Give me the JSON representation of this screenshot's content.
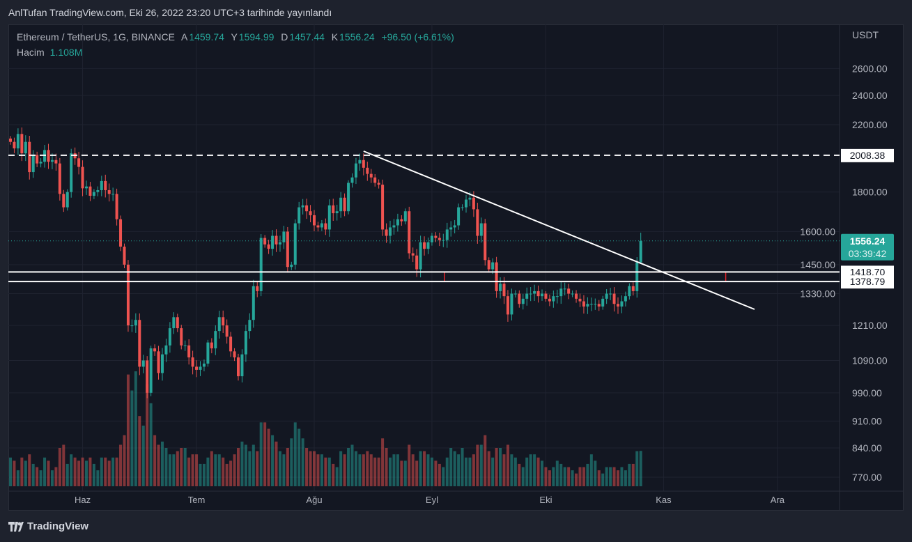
{
  "publish_line": "AnlTufan TradingView.com, Eki 26, 2022 23:20 UTC+3 tarihinde yayınlandı",
  "legend": {
    "symbol": "Ethereum / TetherUS, 1G, BINANCE",
    "open_label": "A",
    "open": "1459.74",
    "high_label": "Y",
    "high": "1594.99",
    "low_label": "D",
    "low": "1457.44",
    "close_label": "K",
    "close": "1556.24",
    "change": "+96.50 (+6.61%)",
    "volume_label": "Hacim",
    "volume": "1.108M"
  },
  "footer": {
    "brand": "TradingView"
  },
  "colors": {
    "up": "#26a69a",
    "down": "#ef5350",
    "background": "#131722"
  },
  "chart_data": {
    "type": "candlestick",
    "scale": "log",
    "currency_label": "USDT",
    "y_ticks": [
      "2600.00",
      "2400.00",
      "2200.00",
      "1800.00",
      "1600.00",
      "1450.00",
      "1330.00",
      "1210.00",
      "1090.00",
      "990.00",
      "910.00",
      "840.00",
      "770.00"
    ],
    "y_tick_values": [
      2600,
      2400,
      2200,
      1800,
      1600,
      1450,
      1330,
      1210,
      1090,
      990,
      910,
      840,
      770
    ],
    "x_ticks": [
      {
        "label": "Haz",
        "day": 19
      },
      {
        "label": "Tem",
        "day": 49
      },
      {
        "label": "Ağu",
        "day": 80
      },
      {
        "label": "Eyl",
        "day": 111
      },
      {
        "label": "Eki",
        "day": 141
      },
      {
        "label": "Kas",
        "day": 172
      },
      {
        "label": "Ara",
        "day": 202
      }
    ],
    "start_date": "2022-05-13",
    "closes": [
      2090,
      2050,
      2140,
      2020,
      2090,
      1910,
      2010,
      1960,
      1970,
      2040,
      1970,
      1980,
      1960,
      1790,
      1720,
      1800,
      2020,
      1990,
      1940,
      1820,
      1830,
      1780,
      1800,
      1810,
      1860,
      1810,
      1790,
      1790,
      1660,
      1530,
      1450,
      1210,
      1210,
      1230,
      1070,
      1090,
      990,
      1130,
      1120,
      1050,
      1110,
      1140,
      1200,
      1240,
      1200,
      1140,
      1140,
      1100,
      1070,
      1060,
      1070,
      1080,
      1150,
      1130,
      1190,
      1240,
      1210,
      1170,
      1120,
      1100,
      1040,
      1110,
      1190,
      1230,
      1360,
      1340,
      1570,
      1540,
      1520,
      1580,
      1540,
      1550,
      1600,
      1440,
      1450,
      1640,
      1720,
      1730,
      1700,
      1680,
      1630,
      1620,
      1640,
      1610,
      1730,
      1690,
      1700,
      1770,
      1700,
      1850,
      1880,
      1960,
      1980,
      1935,
      1900,
      1880,
      1850,
      1840,
      1610,
      1580,
      1620,
      1630,
      1660,
      1650,
      1700,
      1500,
      1490,
      1430,
      1550,
      1520,
      1550,
      1580,
      1570,
      1560,
      1560,
      1610,
      1620,
      1630,
      1720,
      1720,
      1760,
      1770,
      1710,
      1580,
      1640,
      1470,
      1430,
      1460,
      1340,
      1370,
      1320,
      1250,
      1330,
      1330,
      1290,
      1310,
      1330,
      1330,
      1340,
      1320,
      1330,
      1310,
      1300,
      1320,
      1320,
      1350,
      1350,
      1330,
      1330,
      1310,
      1300,
      1280,
      1290,
      1290,
      1290,
      1280,
      1310,
      1330,
      1330,
      1290,
      1280,
      1300,
      1320,
      1360,
      1340,
      1459.74,
      1556.24
    ],
    "last_bar": {
      "open": 1459.74,
      "high": 1594.99,
      "low": 1457.44,
      "close": 1556.24
    },
    "volumes_m": [
      0.9,
      0.8,
      0.5,
      0.9,
      0.8,
      1.0,
      0.7,
      0.6,
      0.5,
      0.9,
      0.8,
      0.5,
      0.6,
      1.2,
      1.3,
      0.7,
      1.0,
      0.9,
      0.8,
      0.9,
      0.8,
      0.9,
      0.7,
      0.5,
      0.9,
      0.9,
      0.8,
      0.9,
      0.9,
      1.3,
      1.6,
      3.5,
      3.0,
      3.6,
      2.2,
      1.9,
      3.2,
      2.6,
      1.6,
      1.3,
      1.4,
      1.2,
      1.0,
      1.0,
      1.1,
      1.2,
      1.2,
      0.9,
      1.0,
      1.0,
      0.7,
      0.7,
      0.9,
      1.1,
      1.0,
      1.0,
      0.9,
      0.7,
      0.8,
      1.0,
      1.2,
      1.4,
      1.3,
      1.1,
      1.3,
      1.1,
      2.0,
      2.0,
      1.8,
      1.6,
      1.4,
      1.1,
      1.0,
      1.2,
      1.5,
      2.0,
      1.8,
      1.5,
      1.2,
      1.1,
      1.1,
      1.0,
      1.0,
      0.9,
      0.9,
      0.7,
      0.6,
      1.1,
      1.0,
      1.2,
      1.3,
      1.1,
      1.0,
      1.0,
      1.1,
      1.0,
      0.9,
      0.9,
      1.5,
      1.2,
      0.9,
      1.0,
      1.0,
      0.8,
      0.8,
      1.3,
      1.0,
      0.8,
      1.1,
      1.1,
      1.0,
      0.9,
      0.8,
      0.7,
      0.6,
      0.9,
      1.2,
      1.1,
      1.0,
      1.2,
      0.9,
      0.9,
      1.0,
      1.3,
      1.3,
      1.6,
      1.1,
      0.9,
      1.2,
      1.2,
      1.0,
      1.3,
      1.0,
      0.9,
      0.7,
      0.6,
      0.9,
      1.0,
      1.0,
      0.9,
      0.8,
      0.6,
      0.5,
      0.6,
      0.8,
      0.7,
      0.6,
      0.6,
      0.5,
      0.4,
      0.6,
      0.6,
      0.7,
      1.0,
      0.8,
      0.5,
      0.4,
      0.6,
      0.6,
      0.6,
      0.5,
      0.6,
      0.5,
      0.7,
      0.7,
      1.1,
      1.108
    ],
    "annotations": {
      "resistance_dashed": {
        "value": 2008.38,
        "label": "2008.38"
      },
      "support_upper": {
        "value": 1418.7,
        "label": "1418.70"
      },
      "support_lower": {
        "value": 1378.79,
        "label": "1378.79"
      },
      "last_price": {
        "value": 1556.24,
        "label": "1556.24",
        "countdown": "03:39:42"
      },
      "trendline": {
        "from": {
          "day": 93,
          "price": 2060
        },
        "to": {
          "day": 196,
          "price": 1260
        }
      },
      "zone": {
        "from_day": 115,
        "to_day": 188,
        "low": 1378.79,
        "high": 1418.7
      }
    }
  }
}
